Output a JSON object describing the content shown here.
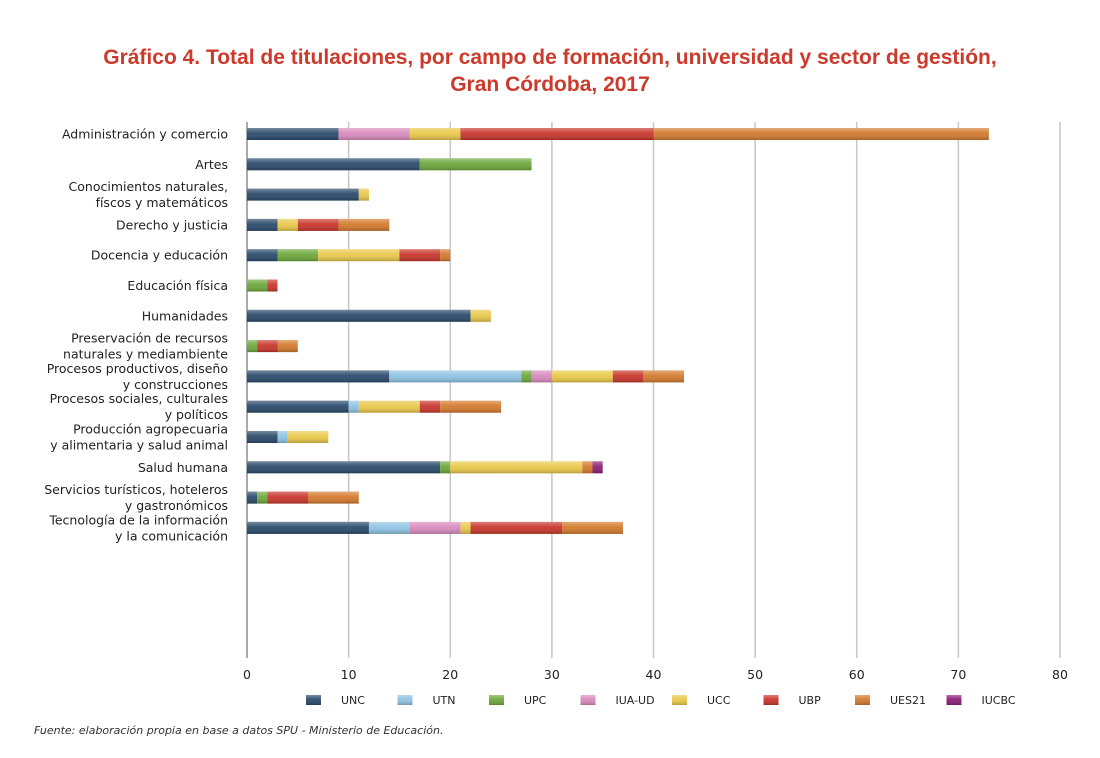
{
  "title": {
    "line1": "Gráfico 4. Total de titulaciones, por campo de formación, universidad y sector de gestión,",
    "line2": "Gran Córdoba, 2017"
  },
  "source": "Fuente: elaboración propia en base a datos SPU - Ministerio de Educación.",
  "chart_data": {
    "type": "bar",
    "orientation": "horizontal",
    "stacked": true,
    "title": "Gráfico 4. Total de titulaciones, por campo de formación, universidad y sector de gestión, Gran Córdoba, 2017",
    "xlabel": "",
    "ylabel": "",
    "xlim": [
      0,
      80
    ],
    "xticks": [
      0,
      10,
      20,
      30,
      40,
      50,
      60,
      70,
      80
    ],
    "grid": "vertical",
    "legend": "bottom",
    "categories": [
      [
        "Administración y comercio"
      ],
      [
        "Artes"
      ],
      [
        "Conocimientos naturales,",
        "físcos y matemáticos"
      ],
      [
        "Derecho y justicia"
      ],
      [
        "Docencia y educación"
      ],
      [
        "Educación física"
      ],
      [
        "Humanidades"
      ],
      [
        "Preservación de recursos",
        "naturales y mediambiente"
      ],
      [
        "Procesos productivos, diseño",
        "y construcciones"
      ],
      [
        "Procesos sociales, culturales",
        "y políticos"
      ],
      [
        "Producción agropecuaria",
        "y alimentaria y salud animal"
      ],
      [
        "Salud humana"
      ],
      [
        "Servicios turísticos, hoteleros",
        "y gastronómicos"
      ],
      [
        "Tecnología de la información",
        "y la comunicación"
      ]
    ],
    "series": [
      {
        "name": "UNC",
        "color": "#2a4a6b",
        "values": [
          9,
          17,
          11,
          3,
          3,
          0,
          22,
          0,
          14,
          10,
          3,
          19,
          1,
          12
        ]
      },
      {
        "name": "UTN",
        "color": "#8fc3e3",
        "values": [
          0,
          0,
          0,
          0,
          0,
          0,
          0,
          0,
          13,
          1,
          1,
          0,
          0,
          4
        ]
      },
      {
        "name": "UPC",
        "color": "#6ea83c",
        "values": [
          0,
          11,
          0,
          0,
          4,
          2,
          0,
          1,
          1,
          0,
          0,
          1,
          1,
          0
        ]
      },
      {
        "name": "IUA-UD",
        "color": "#d88bbd",
        "values": [
          7,
          0,
          0,
          0,
          0,
          0,
          0,
          0,
          2,
          0,
          0,
          0,
          0,
          5
        ]
      },
      {
        "name": "UCC",
        "color": "#e9c84a",
        "values": [
          5,
          0,
          1,
          2,
          8,
          0,
          2,
          0,
          6,
          6,
          4,
          13,
          0,
          1
        ]
      },
      {
        "name": "UBP",
        "color": "#c8362c",
        "values": [
          19,
          0,
          0,
          4,
          4,
          1,
          0,
          2,
          3,
          2,
          0,
          0,
          4,
          9
        ]
      },
      {
        "name": "UES21",
        "color": "#d47a2e",
        "values": [
          33,
          0,
          0,
          5,
          1,
          0,
          0,
          2,
          4,
          6,
          0,
          1,
          5,
          6
        ]
      },
      {
        "name": "IUCBC",
        "color": "#8b1f7a",
        "values": [
          0,
          0,
          0,
          0,
          0,
          0,
          0,
          0,
          0,
          0,
          0,
          1,
          0,
          0
        ]
      }
    ]
  }
}
